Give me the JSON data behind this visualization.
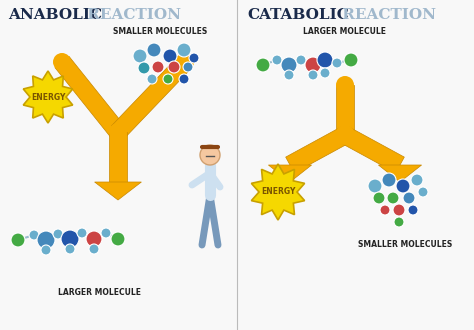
{
  "bg_color": "#f8f8f8",
  "divider_color": "#bbbbbb",
  "title_left_bold": "ANABOLIC",
  "title_left_light": " REACTION",
  "title_right_bold": "CATABOLIC",
  "title_right_light": " REACTION",
  "title_bold_color": "#1a2a4a",
  "title_light_color": "#a0b8cc",
  "title_fontsize": 11,
  "label_fontsize": 5.5,
  "label_color": "#222222",
  "arrow_color": "#f5aa00",
  "arrow_edge_color": "#c88800",
  "energy_bg": "#f5d800",
  "energy_edge": "#c8a000",
  "energy_text": "#7a5500",
  "energy_fontsize": 5.5,
  "molecule_colors": {
    "blue_light": "#6aaecc",
    "blue_mid": "#4488bb",
    "blue_dark": "#2255aa",
    "red": "#cc4444",
    "green": "#44aa44",
    "teal": "#3399aa"
  }
}
